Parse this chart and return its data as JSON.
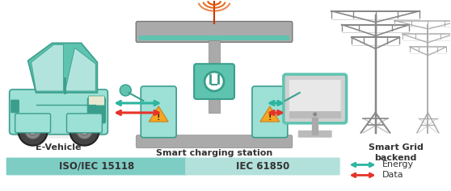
{
  "bg_color": "#ffffff",
  "bar_color_left": "#7ecdc4",
  "bar_color_right": "#b2e0da",
  "bar_label_left": "ISO/IEC 15118",
  "bar_label_right": "IEC 61850",
  "label_evehicle": "E-Vehicle",
  "label_station": "Smart charging station",
  "label_backend": "Smart Grid\nbackend",
  "legend_energy": "Energy",
  "legend_data": "Data",
  "arrow_energy_color": "#2db5a0",
  "arrow_data_color": "#e63329",
  "figsize": [
    5.58,
    2.37
  ],
  "dpi": 100,
  "font_color": "#333333",
  "teal_main": "#5ec4b0",
  "teal_dark": "#3a9e8c",
  "teal_light": "#9de0d6",
  "teal_bg": "#c8ede9",
  "gray_mid": "#999999",
  "gray_dark": "#666666",
  "gray_light": "#cccccc",
  "gray_canopy": "#888888"
}
